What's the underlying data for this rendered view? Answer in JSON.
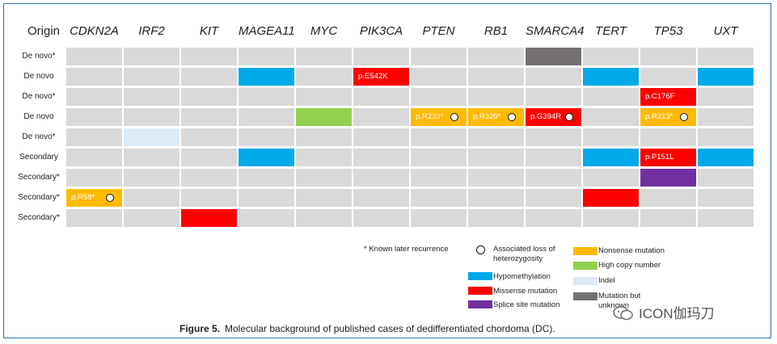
{
  "genes": [
    "CDKN2A",
    "IRF2",
    "KIT",
    "MAGEA11",
    "MYC",
    "PIK3CA",
    "PTEN",
    "RB1",
    "SMARCA4",
    "TERT",
    "TP53",
    "UXT"
  ],
  "origin_header": "Origin",
  "rows": [
    {
      "origin": "De novo*"
    },
    {
      "origin": "De novo"
    },
    {
      "origin": "De novo*"
    },
    {
      "origin": "De novo"
    },
    {
      "origin": "De novo*"
    },
    {
      "origin": "Secondary"
    },
    {
      "origin": "Secondary*"
    },
    {
      "origin": "Secondary*"
    },
    {
      "origin": "Secondary*"
    }
  ],
  "alterations": [
    {
      "row": 0,
      "gene": "SMARCA4",
      "type": "unknown",
      "label": "",
      "loh": false
    },
    {
      "row": 1,
      "gene": "MAGEA11",
      "type": "hypomethylation",
      "label": "",
      "loh": false
    },
    {
      "row": 1,
      "gene": "PIK3CA",
      "type": "missense",
      "label": "p.E542K",
      "loh": false
    },
    {
      "row": 1,
      "gene": "TERT",
      "type": "hypomethylation",
      "label": "",
      "loh": false
    },
    {
      "row": 1,
      "gene": "UXT",
      "type": "hypomethylation",
      "label": "",
      "loh": false
    },
    {
      "row": 2,
      "gene": "TP53",
      "type": "missense",
      "label": "p.C176F",
      "loh": false
    },
    {
      "row": 3,
      "gene": "MYC",
      "type": "high_copy",
      "label": "",
      "loh": false
    },
    {
      "row": 3,
      "gene": "PTEN",
      "type": "nonsense",
      "label": "p.R233*",
      "loh": true
    },
    {
      "row": 3,
      "gene": "RB1",
      "type": "nonsense",
      "label": "p.R320*",
      "loh": true
    },
    {
      "row": 3,
      "gene": "SMARCA4",
      "type": "missense",
      "label": "p.G394R",
      "loh": true
    },
    {
      "row": 3,
      "gene": "TP53",
      "type": "nonsense",
      "label": "p.R213*",
      "loh": true
    },
    {
      "row": 4,
      "gene": "IRF2",
      "type": "indel",
      "label": "",
      "loh": false
    },
    {
      "row": 5,
      "gene": "MAGEA11",
      "type": "hypomethylation",
      "label": "",
      "loh": false
    },
    {
      "row": 5,
      "gene": "TERT",
      "type": "hypomethylation",
      "label": "",
      "loh": false
    },
    {
      "row": 5,
      "gene": "TP53",
      "type": "missense",
      "label": "p.P151L",
      "loh": false
    },
    {
      "row": 5,
      "gene": "UXT",
      "type": "hypomethylation",
      "label": "",
      "loh": false
    },
    {
      "row": 6,
      "gene": "TP53",
      "type": "splice",
      "label": "",
      "loh": false
    },
    {
      "row": 7,
      "gene": "CDKN2A",
      "type": "nonsense",
      "label": "p.R58*",
      "loh": true
    },
    {
      "row": 7,
      "gene": "TERT",
      "type": "missense",
      "label": "",
      "loh": false
    },
    {
      "row": 8,
      "gene": "KIT",
      "type": "missense",
      "label": "",
      "loh": false
    }
  ],
  "colors": {
    "empty": "#d9d9d9",
    "hypomethylation": "#00a9e8",
    "missense": "#ff0000",
    "splice": "#7030a0",
    "nonsense": "#ffb900",
    "high_copy": "#92d050",
    "indel": "#dcebf7",
    "unknown": "#767171"
  },
  "legend": {
    "note": "* Known later recurrence",
    "loh": "Associated loss of\nheterozygosity",
    "hypomethylation": "Hypomethylation",
    "missense": "Missense mutation",
    "splice": "Splice site mutation",
    "nonsense": "Nonsense mutation",
    "high_copy": "High copy number",
    "indel": "Indel",
    "unknown": "Mutation but\nunknown"
  },
  "caption": {
    "label": "Figure 5.",
    "text": "Molecular background of published cases of dedifferentiated chordoma (DC)."
  },
  "watermark": {
    "text": "ICON伽玛刀",
    "icon": "wechat-icon"
  }
}
